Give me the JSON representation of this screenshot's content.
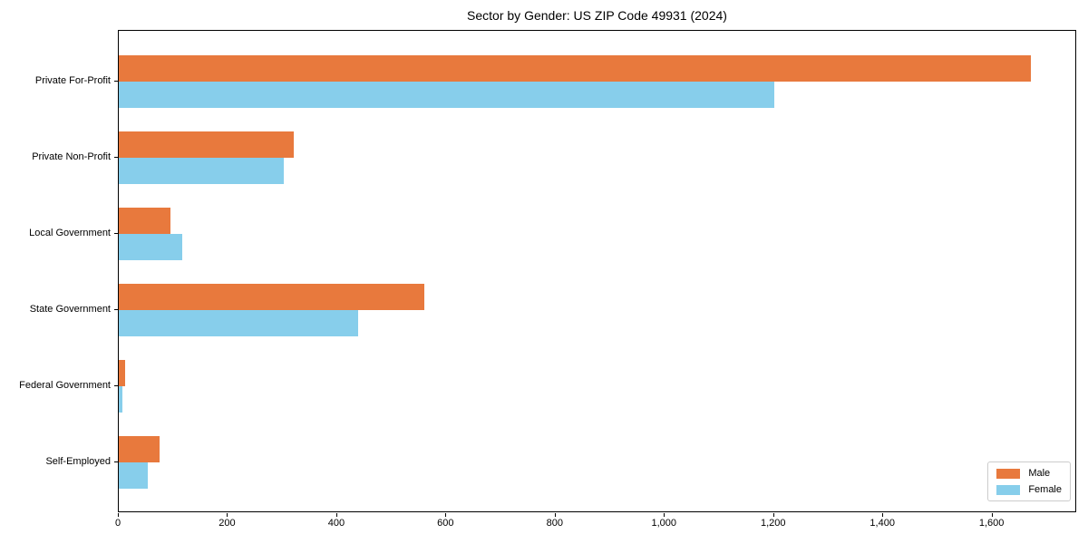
{
  "title": "Sector by Gender: US ZIP Code 49931 (2024)",
  "chart_data": {
    "type": "bar",
    "orientation": "horizontal",
    "title": "Sector by Gender: US ZIP Code 49931 (2024)",
    "xlabel": "",
    "ylabel": "",
    "categories": [
      "Private For-Profit",
      "Private Non-Profit",
      "Local Government",
      "State Government",
      "Federal Government",
      "Self-Employed"
    ],
    "series": [
      {
        "name": "Male",
        "color": "#e8793d",
        "values": [
          1670,
          320,
          95,
          560,
          12,
          74
        ]
      },
      {
        "name": "Female",
        "color": "#87ceeb",
        "values": [
          1200,
          303,
          117,
          438,
          7,
          53
        ]
      }
    ],
    "xlim": [
      0,
      1755
    ],
    "xticks": [
      0,
      200,
      400,
      600,
      800,
      1000,
      1200,
      1400,
      1600
    ],
    "xtick_labels": [
      "0",
      "200",
      "400",
      "600",
      "800",
      "1,000",
      "1,200",
      "1,400",
      "1,600"
    ],
    "grid": false,
    "legend": {
      "position": "lower right",
      "entries": [
        "Male",
        "Female"
      ]
    }
  }
}
